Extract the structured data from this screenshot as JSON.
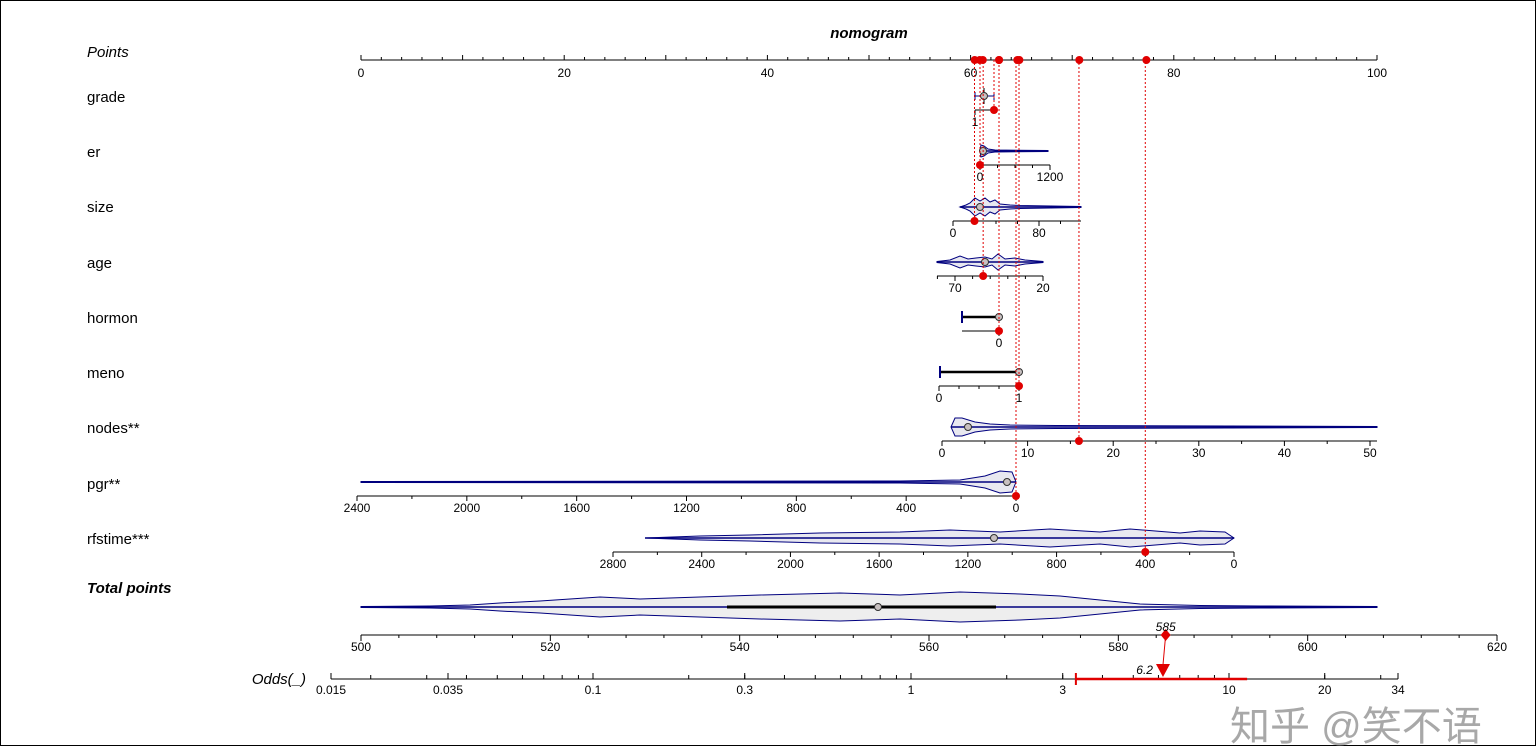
{
  "chart_data": {
    "type": "nomogram",
    "title": "nomogram",
    "points_axis": {
      "label": "Points",
      "range": [
        0,
        100
      ],
      "ticks": [
        0,
        20,
        40,
        60,
        80,
        100
      ]
    },
    "variables": [
      {
        "name": "grade",
        "ticks": [
          "1"
        ],
        "selected_value": 2,
        "points": 62.8
      },
      {
        "name": "er",
        "ticks": [
          "0",
          "1200"
        ],
        "selected_value": 0,
        "points": 60.9
      },
      {
        "name": "size",
        "ticks": [
          "0",
          "80"
        ],
        "selected_value": 20,
        "points": 60.4
      },
      {
        "name": "age",
        "ticks": [
          "70",
          "20"
        ],
        "selected_value": 54,
        "points": 61.2
      },
      {
        "name": "hormon",
        "ticks": [
          "0"
        ],
        "selected_value": 0,
        "points": 62.8
      },
      {
        "name": "meno",
        "ticks": [
          "0",
          "1"
        ],
        "selected_value": 1,
        "points": 64.8
      },
      {
        "name": "nodes**",
        "ticks": [
          "0",
          "10",
          "20",
          "30",
          "40",
          "50"
        ],
        "selected_value": 16,
        "points": 70.7
      },
      {
        "name": "pgr**",
        "ticks": [
          "2400",
          "2000",
          "1600",
          "1200",
          "800",
          "400",
          "0"
        ],
        "selected_value": 0,
        "points": 64.6
      },
      {
        "name": "rfstime***",
        "ticks": [
          "2800",
          "2400",
          "2000",
          "1600",
          "1200",
          "800",
          "400",
          "0"
        ],
        "selected_value": 400,
        "points": 77.3
      }
    ],
    "total_points_axis": {
      "label": "Total points",
      "range": [
        500,
        620
      ],
      "ticks": [
        "500",
        "520",
        "540",
        "560",
        "580",
        "600",
        "620"
      ],
      "selected_value": 585,
      "selected_label": "585"
    },
    "odds_axis": {
      "label": "Odds(_)",
      "scale": "log",
      "ticks": [
        "0.015",
        "0.035",
        "0.1",
        "0.3",
        "1",
        "3",
        "10",
        "20",
        "34"
      ],
      "predicted": 6.2,
      "predicted_label": "6.2",
      "ci": [
        3.3,
        11.4
      ]
    },
    "colors": {
      "distribution": "#00007f",
      "fill": "#e8e8f0",
      "highlight": "#e00000"
    }
  },
  "watermark": "知乎 @笑不语"
}
